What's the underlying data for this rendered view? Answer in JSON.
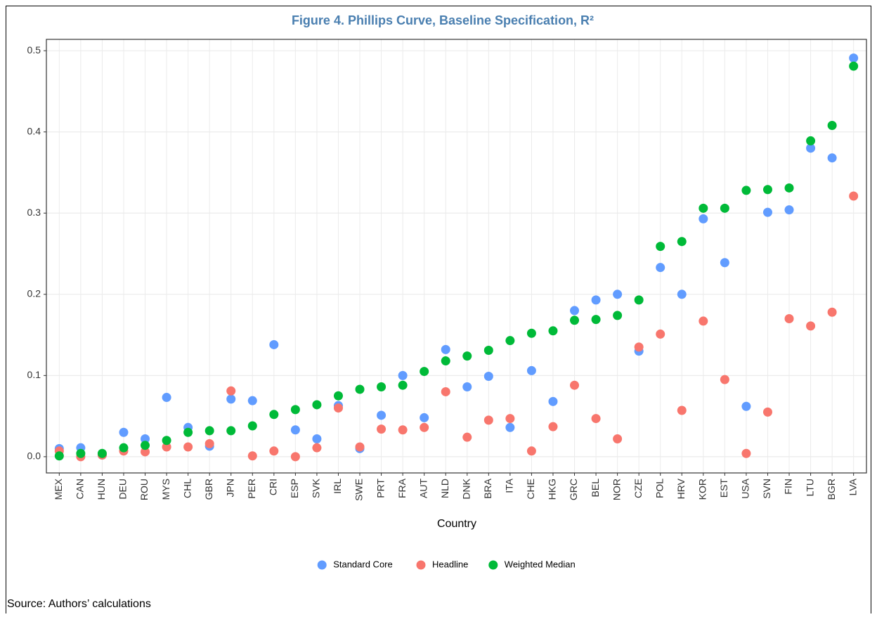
{
  "chart_data": {
    "type": "scatter",
    "title": "Figure 4. Phillips Curve, Baseline Specification, R²",
    "x_label": "Country",
    "source": "Source: Authors’ calculations",
    "categories": [
      "MEX",
      "CAN",
      "HUN",
      "DEU",
      "ROU",
      "MYS",
      "CHL",
      "GBR",
      "JPN",
      "PER",
      "CRI",
      "ESP",
      "SVK",
      "IRL",
      "SWE",
      "PRT",
      "FRA",
      "AUT",
      "NLD",
      "DNK",
      "BRA",
      "ITA",
      "CHE",
      "HKG",
      "GRC",
      "BEL",
      "NOR",
      "CZE",
      "POL",
      "HRV",
      "KOR",
      "EST",
      "USA",
      "SVN",
      "FIN",
      "LTU",
      "BGR",
      "LVA"
    ],
    "series": [
      {
        "name": "Standard Core",
        "color": "#619cff",
        "values": [
          0.01,
          0.011,
          0.002,
          0.03,
          0.022,
          0.073,
          0.036,
          0.013,
          0.071,
          0.069,
          0.138,
          0.033,
          0.022,
          0.063,
          0.01,
          0.051,
          0.1,
          0.048,
          0.132,
          0.086,
          0.099,
          0.036,
          0.106,
          0.068,
          0.18,
          0.193,
          0.2,
          0.13,
          0.233,
          0.2,
          0.293,
          0.239,
          0.062,
          0.301,
          0.304,
          0.38,
          0.368,
          0.491
        ]
      },
      {
        "name": "Headline",
        "color": "#f8766d",
        "values": [
          0.007,
          0.0,
          0.002,
          0.007,
          0.006,
          0.012,
          0.012,
          0.016,
          0.081,
          0.001,
          0.007,
          0.0,
          0.011,
          0.06,
          0.012,
          0.034,
          0.033,
          0.036,
          0.08,
          0.024,
          0.045,
          0.047,
          0.007,
          0.037,
          0.088,
          0.047,
          0.022,
          0.135,
          0.151,
          0.057,
          0.167,
          0.095,
          0.004,
          0.055,
          0.17,
          0.161,
          0.178,
          0.321
        ]
      },
      {
        "name": "Weighted Median",
        "color": "#00ba38",
        "values": [
          0.001,
          0.004,
          0.004,
          0.011,
          0.014,
          0.02,
          0.03,
          0.032,
          0.032,
          0.038,
          0.052,
          0.058,
          0.064,
          0.075,
          0.083,
          0.086,
          0.088,
          0.105,
          0.118,
          0.124,
          0.131,
          0.143,
          0.152,
          0.155,
          0.168,
          0.169,
          0.174,
          0.193,
          0.259,
          0.265,
          0.306,
          0.306,
          0.328,
          0.329,
          0.331,
          0.389,
          0.408,
          0.481
        ]
      }
    ],
    "ylim": [
      -0.02,
      0.514
    ],
    "yticks": [
      {
        "value": 0,
        "label": "0.0"
      },
      0.1,
      0.2,
      0.3,
      0.4,
      0.5
    ],
    "grid": true,
    "legend": "bottom"
  }
}
